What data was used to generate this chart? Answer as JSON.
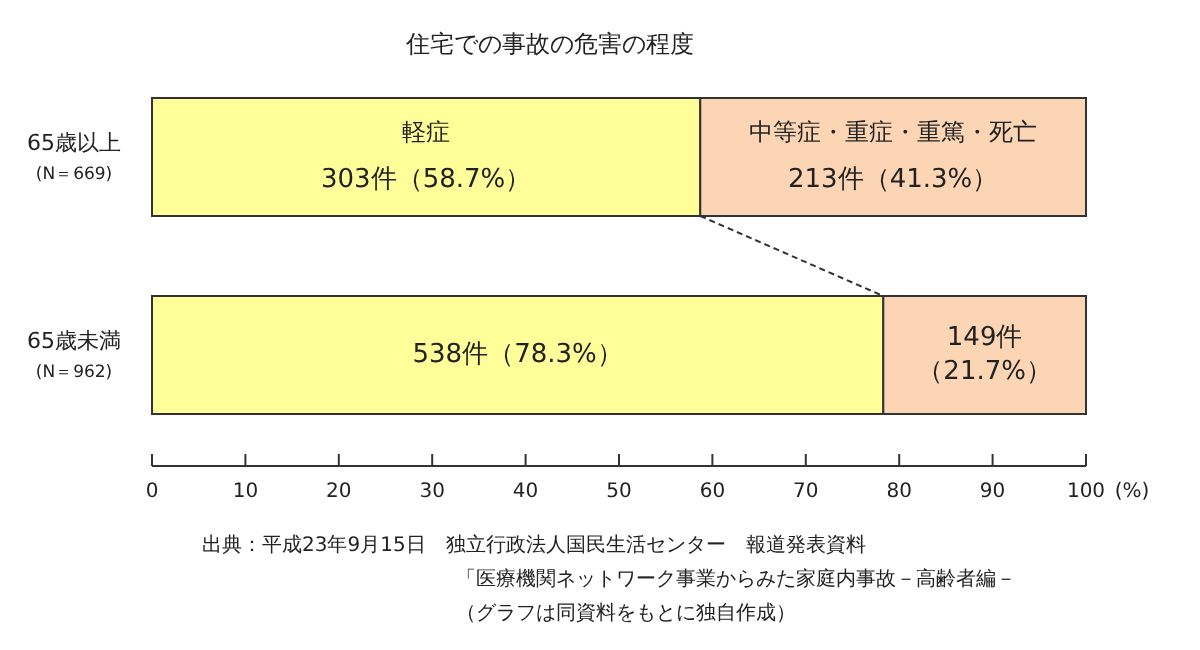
{
  "chart_data": {
    "type": "bar",
    "orientation": "horizontal",
    "stacked": true,
    "title": "住宅での事故の危害の程度",
    "categories": [
      "65歳以上\n(N＝669)",
      "65歳未満\n(N＝962)"
    ],
    "series": [
      {
        "name": "軽症",
        "color": "#ffff99",
        "values": [
          58.7,
          78.3
        ],
        "value_labels": [
          "303件（58.7%）",
          "538件（78.3%）"
        ]
      },
      {
        "name": "中等症・重症・重篤・死亡",
        "color": "#fcd5b5",
        "values": [
          41.3,
          21.7
        ],
        "value_labels": [
          "213件（41.3%）",
          "149件（21.7%）"
        ]
      }
    ],
    "xlim": [
      0,
      100
    ],
    "xticks": [
      0,
      10,
      20,
      30,
      40,
      50,
      60,
      70,
      80,
      90,
      100
    ],
    "xlabel": "(%)",
    "annotations": [
      "出典：平成23年9月15日　独立行政法人国民生活センター　報道発表資料",
      "「医療機関ネットワーク事業からみた家庭内事故－高齢者編－",
      "（グラフは同資料をもとに独自作成）"
    ]
  }
}
